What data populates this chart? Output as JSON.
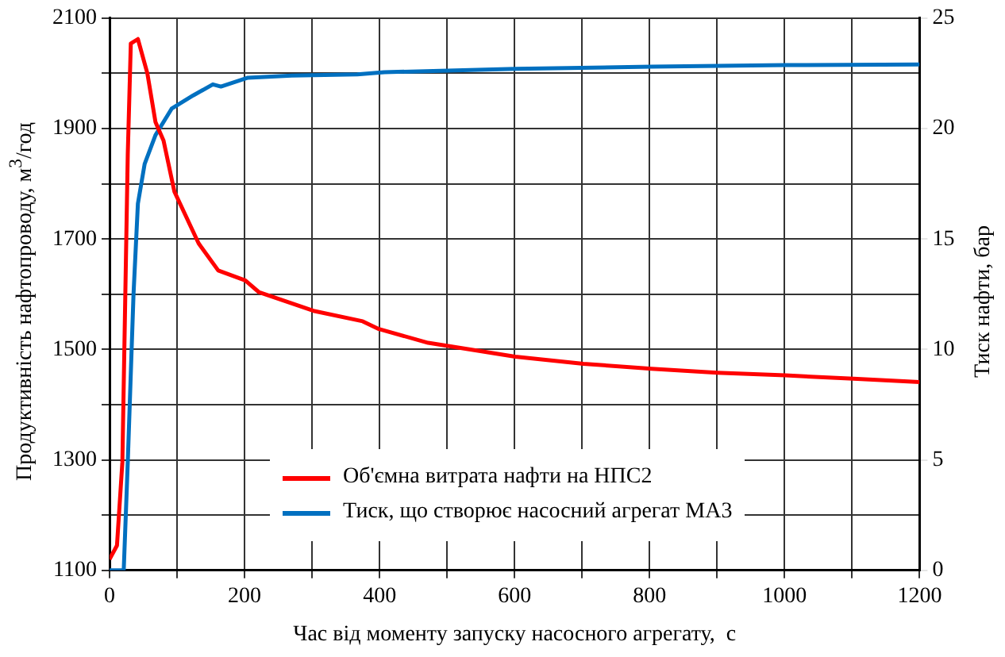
{
  "chart_data": {
    "type": "line",
    "xlabel": "Час від моменту запуску насосного агрегату,  с",
    "ylabel": "Продуктивність нафтопроводу,  м$^{3}$/год",
    "y2label": "Тиск нафти,  бар",
    "xlim": [
      0,
      1200
    ],
    "xticks": [
      0,
      {
        "value": 100,
        "label": null
      },
      200,
      {
        "value": 300,
        "label": null
      },
      400,
      {
        "value": 500,
        "label": null
      },
      600,
      {
        "value": 700,
        "label": null
      },
      800,
      {
        "value": 900,
        "label": null
      },
      1000,
      {
        "value": 1100,
        "label": null
      },
      1200
    ],
    "ylim": [
      1100,
      2100
    ],
    "yticks": [
      1100,
      {
        "value": 1200,
        "label": null
      },
      1300,
      {
        "value": 1400,
        "label": null
      },
      1500,
      {
        "value": 1600,
        "label": null
      },
      1700,
      {
        "value": 1800,
        "label": null
      },
      1900,
      {
        "value": 2000,
        "label": null
      },
      2100
    ],
    "y2lim": [
      0,
      25
    ],
    "y2ticks": [
      0,
      5,
      10,
      15,
      20,
      25
    ],
    "grid": true,
    "legend": "bottom",
    "marker": "none",
    "line_style": "solid",
    "series": [
      {
        "name": "Об'ємна витрата нафти на НПС2",
        "color": "#ff0000",
        "x": [
          0,
          11,
          19,
          27,
          31.5,
          42,
          56,
          68,
          80,
          96,
          132,
          161,
          201,
          221,
          302,
          375,
          399,
          472,
          601,
          702,
          803,
          900,
          1001,
          1102,
          1200
        ],
        "values": [
          1120,
          1145,
          1296,
          1854,
          2054,
          2062,
          2000,
          1912,
          1878,
          1786,
          1692,
          1643,
          1625,
          1604,
          1570,
          1551,
          1537,
          1512,
          1487,
          1474,
          1465,
          1458,
          1453,
          1447,
          1441
        ]
      },
      {
        "name": "Тиск, що створює насосний агрегат МА3",
        "color": "#0070c0",
        "axis": "y2",
        "x": [
          0,
          21,
          27,
          35.5,
          42,
          52,
          68,
          92,
          124,
          153,
          165,
          205,
          270,
          367,
          407,
          601,
          803,
          1001,
          1200
        ],
        "values": [
          0,
          0,
          4.9,
          12.5,
          16.6,
          18.4,
          19.7,
          20.9,
          21.5,
          22.0,
          21.9,
          22.3,
          22.4,
          22.45,
          22.55,
          22.7,
          22.8,
          22.87,
          22.9
        ]
      }
    ]
  }
}
